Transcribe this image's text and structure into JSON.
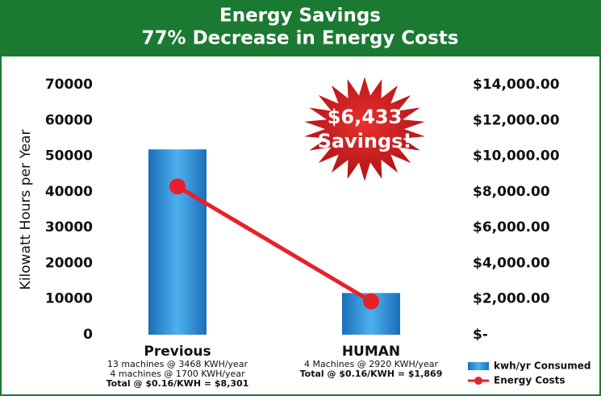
{
  "chart_data": {
    "type": "bar",
    "title": "Energy Savings",
    "subtitle": "77% Decrease in Energy Costs",
    "ylabel": "Kilowatt Hours per Year",
    "annotation": [
      "$6,433",
      "Savings!"
    ],
    "categories": [
      "Previous",
      "HUMAN"
    ],
    "category_notes": [
      [
        "13 machines @ 3468 KWH/year",
        "4 machines @ 1700 KWH/year",
        "Total @ $0.16/KWH = $8,301"
      ],
      [
        "4 Machines @ 2920 KWH/year",
        "Total @ $0.16/KWH = $1,869"
      ]
    ],
    "series": [
      {
        "name": "kwh/yr Consumed",
        "color": "#2a8ad6",
        "type": "bar",
        "values": [
          51884,
          11680
        ]
      },
      {
        "name": "Energy Costs",
        "color": "#e8202a",
        "type": "line",
        "axis": "y2",
        "values": [
          8301,
          1869
        ]
      }
    ],
    "ylim": [
      0,
      70000
    ],
    "yticks": [
      0,
      10000,
      20000,
      30000,
      40000,
      50000,
      60000,
      70000
    ],
    "y2lim": [
      0,
      14000
    ],
    "y2ticks": [
      {
        "value": 0,
        "label": "$-"
      },
      {
        "value": 2000,
        "label": "$2,000.00"
      },
      {
        "value": 4000,
        "label": "$4,000.00"
      },
      {
        "value": 6000,
        "label": "$6,000.00"
      },
      {
        "value": 8000,
        "label": "$8,000.00"
      },
      {
        "value": 10000,
        "label": "$10,000.00"
      },
      {
        "value": 12000,
        "label": "$12,000.00"
      },
      {
        "value": 14000,
        "label": "$14,000.00"
      }
    ],
    "legend": "bottom-right"
  }
}
